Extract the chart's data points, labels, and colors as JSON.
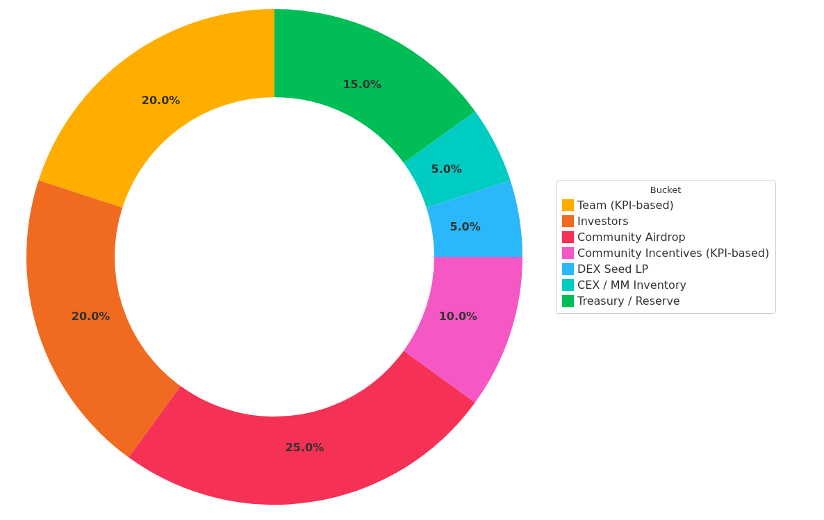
{
  "chart_data": {
    "type": "donut",
    "legend_title": "Bucket",
    "legend": "right",
    "categories": [
      "Team (KPI-based)",
      "Investors",
      "Community Airdrop",
      "Community Incentives (KPI-based)",
      "DEX Seed LP",
      "CEX / MM Inventory",
      "Treasury / Reserve"
    ],
    "values": [
      20,
      20,
      25,
      10,
      5,
      5,
      15
    ],
    "colors": [
      "#ffae00",
      "#f06a20",
      "#f53155",
      "#f557c4",
      "#2bb8fa",
      "#00ccc2",
      "#00be55"
    ],
    "value_labels": [
      "20.0%",
      "20.0%",
      "25.0%",
      "10.0%",
      "5.0%",
      "5.0%",
      "15.0%"
    ]
  }
}
